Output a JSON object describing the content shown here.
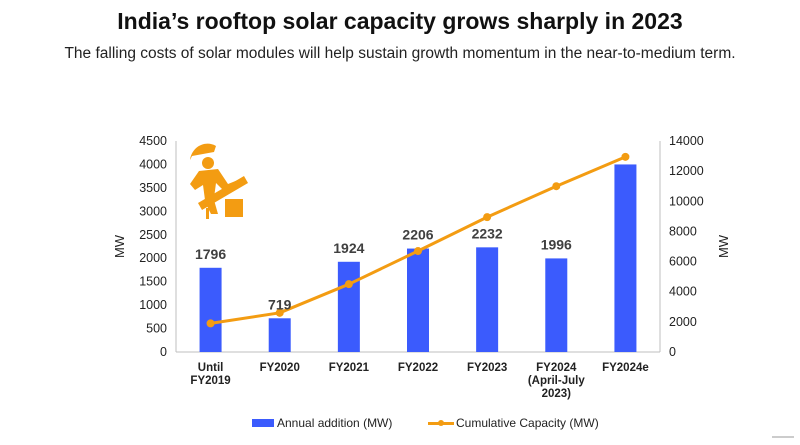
{
  "header": {
    "title": "India’s rooftop solar capacity grows sharply in 2023",
    "subtitle": "The falling costs of solar modules will help sustain growth momentum in the near-to-medium term."
  },
  "colors": {
    "bars": "#3b5bfd",
    "line": "#f39c12",
    "icon": "#f39c12"
  },
  "icon": "solar-installer-icon",
  "chart_data": {
    "type": "bar",
    "categories": [
      [
        "Until",
        "FY2019"
      ],
      [
        "FY2020"
      ],
      [
        "FY2021"
      ],
      [
        "FY2022"
      ],
      [
        "FY2023"
      ],
      [
        "FY2024",
        "(April-July",
        "2023)"
      ],
      [
        "FY2024e"
      ]
    ],
    "series": [
      {
        "name": "Annual addition (MW)",
        "type": "bar",
        "axis": "left",
        "values": [
          1796,
          719,
          1924,
          2206,
          2232,
          1996,
          4000
        ],
        "data_labels": [
          "1796",
          "719",
          "1924",
          "2206",
          "2232",
          "1996",
          ""
        ]
      },
      {
        "name": "Cumulative Capacity (MW)",
        "type": "line",
        "axis": "right",
        "values": [
          1900,
          2600,
          4500,
          6700,
          8950,
          11000,
          12950
        ]
      }
    ],
    "ylabel": "MW",
    "y2label": "MW",
    "ylim": [
      0,
      4500
    ],
    "y2lim": [
      0,
      14000
    ],
    "yticks": [
      0,
      500,
      1000,
      1500,
      2000,
      2500,
      3000,
      3500,
      4000,
      4500
    ],
    "y2ticks": [
      0,
      2000,
      4000,
      6000,
      8000,
      10000,
      12000,
      14000
    ],
    "legend_position": "bottom",
    "grid": false
  }
}
